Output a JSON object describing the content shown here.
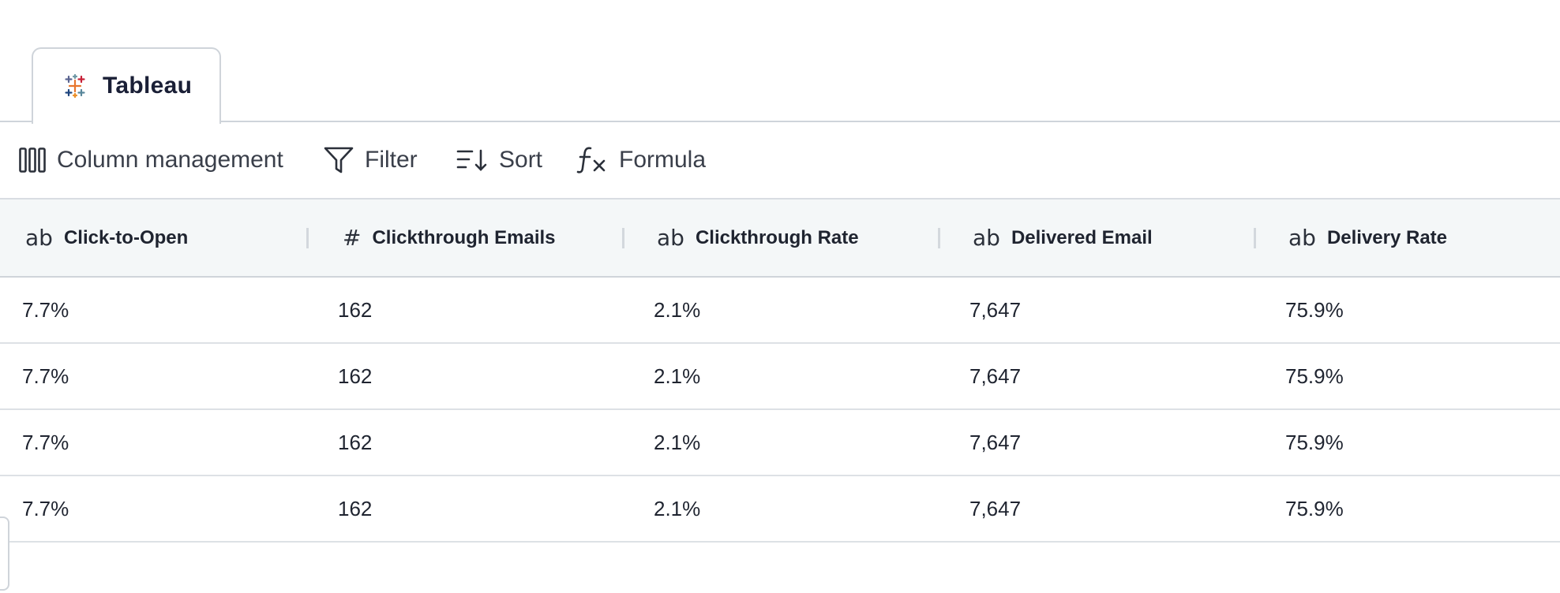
{
  "tab": {
    "label": "Tableau",
    "icon": "tableau-logo-icon"
  },
  "toolbar": {
    "column_management": "Column management",
    "filter": "Filter",
    "sort": "Sort",
    "formula": "Formula"
  },
  "columns": [
    {
      "type": "ab",
      "label": "Click-to-Open"
    },
    {
      "type": "#",
      "label": "Clickthrough Emails"
    },
    {
      "type": "ab",
      "label": "Clickthrough Rate"
    },
    {
      "type": "ab",
      "label": "Delivered Email"
    },
    {
      "type": "ab",
      "label": "Delivery Rate"
    }
  ],
  "rows": [
    [
      "7.7%",
      "162",
      "2.1%",
      "7,647",
      "75.9%"
    ],
    [
      "7.7%",
      "162",
      "2.1%",
      "7,647",
      "75.9%"
    ],
    [
      "7.7%",
      "162",
      "2.1%",
      "7,647",
      "75.9%"
    ],
    [
      "7.7%",
      "162",
      "2.1%",
      "7,647",
      "75.9%"
    ]
  ]
}
